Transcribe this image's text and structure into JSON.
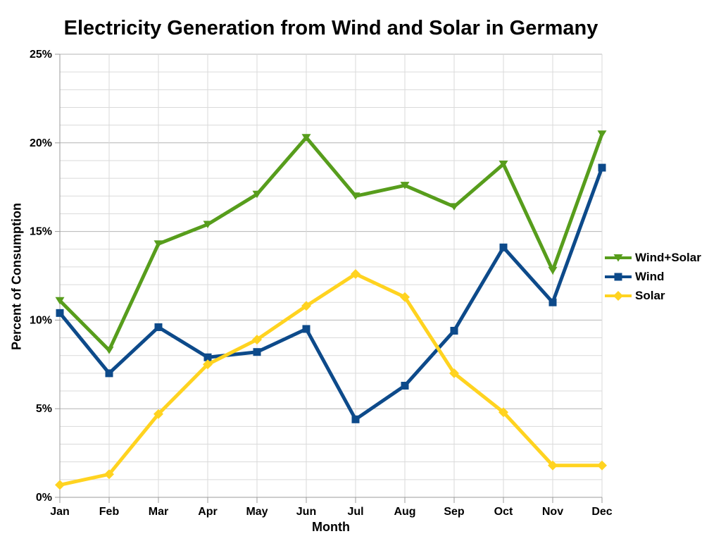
{
  "title": "Electricity Generation from Wind and Solar in Germany",
  "chart_data": {
    "type": "line",
    "title": "Electricity Generation from Wind and Solar in Germany",
    "xlabel": "Month",
    "ylabel": "Percent of Consumption",
    "categories": [
      "Jan",
      "Feb",
      "Mar",
      "Apr",
      "May",
      "Jun",
      "Jul",
      "Aug",
      "Sep",
      "Oct",
      "Nov",
      "Dec"
    ],
    "series": [
      {
        "name": "Wind+Solar",
        "color": "#579D1C",
        "marker": "triangle-down",
        "values": [
          11.1,
          8.3,
          14.3,
          15.4,
          17.1,
          20.3,
          17.0,
          17.6,
          16.4,
          18.8,
          12.8,
          20.5
        ]
      },
      {
        "name": "Wind",
        "color": "#0D4A8A",
        "marker": "square",
        "values": [
          10.4,
          7.0,
          9.6,
          7.9,
          8.2,
          9.5,
          4.4,
          6.3,
          9.4,
          14.1,
          11.0,
          18.6
        ]
      },
      {
        "name": "Solar",
        "color": "#FFD320",
        "marker": "diamond",
        "values": [
          0.7,
          1.3,
          4.7,
          7.5,
          8.9,
          10.8,
          12.6,
          11.3,
          7.0,
          4.8,
          1.8,
          1.8
        ]
      }
    ],
    "ylim": [
      0,
      25
    ],
    "ytick_major": 5,
    "ytick_minor": 1,
    "ytick_suffix": "%",
    "grid": true,
    "legend_position": "right"
  },
  "colors": {
    "background": "#FFFFFF",
    "text": "#000000",
    "grid_minor": "#DADADA",
    "grid_major": "#B4B4B4",
    "axis": "#9B9B9B"
  }
}
